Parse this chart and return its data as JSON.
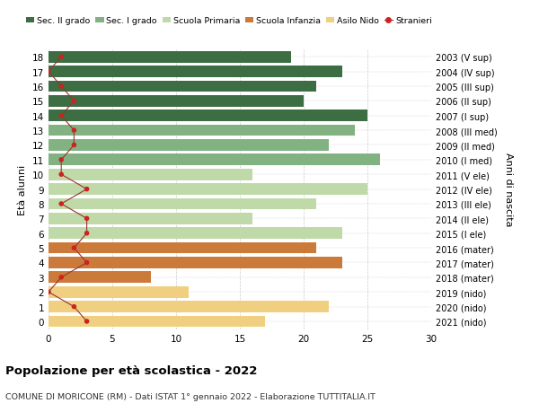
{
  "ages": [
    18,
    17,
    16,
    15,
    14,
    13,
    12,
    11,
    10,
    9,
    8,
    7,
    6,
    5,
    4,
    3,
    2,
    1,
    0
  ],
  "years": [
    "2003 (V sup)",
    "2004 (IV sup)",
    "2005 (III sup)",
    "2006 (II sup)",
    "2007 (I sup)",
    "2008 (III med)",
    "2009 (II med)",
    "2010 (I med)",
    "2011 (V ele)",
    "2012 (IV ele)",
    "2013 (III ele)",
    "2014 (II ele)",
    "2015 (I ele)",
    "2016 (mater)",
    "2017 (mater)",
    "2018 (mater)",
    "2019 (nido)",
    "2020 (nido)",
    "2021 (nido)"
  ],
  "bar_values": [
    19,
    23,
    21,
    20,
    25,
    24,
    22,
    26,
    16,
    25,
    21,
    16,
    23,
    21,
    23,
    8,
    11,
    22,
    17
  ],
  "bar_colors": [
    "#3d6e43",
    "#3d6e43",
    "#3d6e43",
    "#3d6e43",
    "#3d6e43",
    "#82b282",
    "#82b282",
    "#82b282",
    "#c0d9a8",
    "#c0d9a8",
    "#c0d9a8",
    "#c0d9a8",
    "#c0d9a8",
    "#cc7a3a",
    "#cc7a3a",
    "#cc7a3a",
    "#f0d080",
    "#f0d080",
    "#f0d080"
  ],
  "stranieri_values": [
    1,
    0,
    1,
    2,
    1,
    2,
    2,
    1,
    1,
    3,
    1,
    3,
    3,
    2,
    3,
    1,
    0,
    2,
    3
  ],
  "title": "Popolazione per età scolastica - 2022",
  "subtitle": "COMUNE DI MORICONE (RM) - Dati ISTAT 1° gennaio 2022 - Elaborazione TUTTITALIA.IT",
  "ylabel_left": "Età alunni",
  "ylabel_right": "Anni di nascita",
  "xlim": [
    0,
    30
  ],
  "legend_labels": [
    "Sec. II grado",
    "Sec. I grado",
    "Scuola Primaria",
    "Scuola Infanzia",
    "Asilo Nido",
    "Stranieri"
  ],
  "legend_colors": [
    "#3d6e43",
    "#82b282",
    "#c0d9a8",
    "#cc7a3a",
    "#f0d080",
    "#cc2222"
  ],
  "bar_height": 0.78,
  "grid_color": "#cccccc",
  "stranieri_line_color": "#993333",
  "stranieri_dot_color": "#cc2222"
}
